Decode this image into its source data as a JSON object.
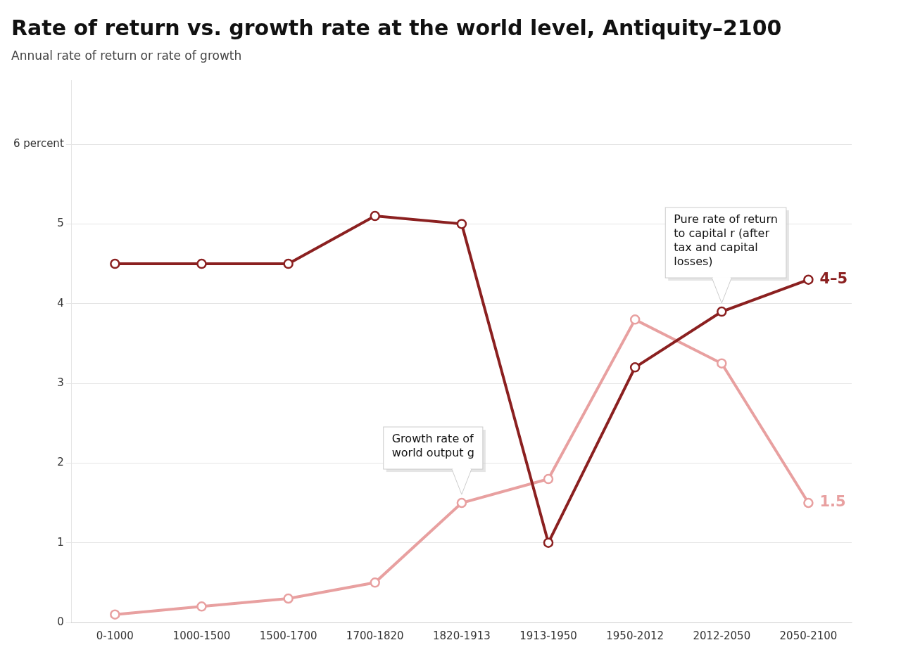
{
  "chart_data": {
    "type": "line",
    "title": "Rate of return vs. growth rate at the world level, Antiquity–2100",
    "subtitle": "Annual rate of return or rate of growth",
    "categories": [
      "0-1000",
      "1000-1500",
      "1500-1700",
      "1700-1820",
      "1820-1913",
      "1913-1950",
      "1950-2012",
      "2012-2050",
      "2050-2100"
    ],
    "series": [
      {
        "color": "#8B2020",
        "values": [
          4.5,
          4.5,
          4.5,
          5.1,
          5.0,
          1.0,
          3.2,
          3.9,
          4.3
        ],
        "end_label": "4–5",
        "annotation": "Pure rate of return\nto capital r (after\ntax and capital\nlosses)"
      },
      {
        "color": "#E8A0A0",
        "values": [
          0.1,
          0.2,
          0.3,
          0.5,
          1.5,
          1.8,
          3.8,
          3.25,
          1.5
        ],
        "end_label": "1.5",
        "annotation": "Growth rate of\nworld output g"
      }
    ],
    "ylim": [
      0,
      6.8
    ],
    "yticks": [
      0,
      1,
      2,
      3,
      4,
      5,
      {
        "value": 6,
        "label": "6 percent"
      }
    ],
    "grid": true,
    "marker": "circle",
    "line_style": "solid"
  }
}
